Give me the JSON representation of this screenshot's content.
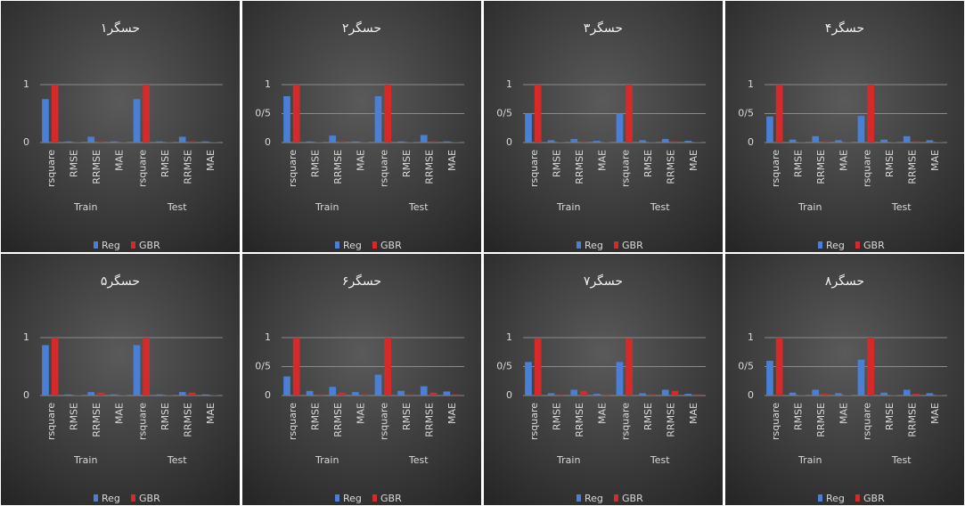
{
  "chart_data": [
    {
      "type": "bar",
      "title": "حسگر۱",
      "categories": [
        "rsquare",
        "RMSE",
        "RRMSE",
        "MAE",
        "rsquare",
        "RMSE",
        "RRMSE",
        "MAE"
      ],
      "groups": [
        "Train",
        "Test"
      ],
      "series": [
        {
          "name": "Reg",
          "color": "#4a7fd4",
          "values": [
            0.75,
            0.02,
            0.1,
            0.02,
            0.75,
            0.02,
            0.1,
            0.02
          ]
        },
        {
          "name": "GBR",
          "color": "#d62a2a",
          "values": [
            1.0,
            0.01,
            0.02,
            0.01,
            1.0,
            0.01,
            0.02,
            0.01
          ]
        }
      ],
      "ylim": [
        0,
        1
      ],
      "yticks": [
        0,
        1
      ],
      "grid": true
    },
    {
      "type": "bar",
      "title": "حسگر۲",
      "categories": [
        "rsquare",
        "RMSE",
        "RRMSE",
        "MAE",
        "rsquare",
        "RMSE",
        "RRMSE",
        "MAE"
      ],
      "groups": [
        "Train",
        "Test"
      ],
      "series": [
        {
          "name": "Reg",
          "color": "#4a7fd4",
          "values": [
            0.8,
            0.02,
            0.12,
            0.02,
            0.8,
            0.02,
            0.13,
            0.02
          ]
        },
        {
          "name": "GBR",
          "color": "#d62a2a",
          "values": [
            1.0,
            0.01,
            0.02,
            0.01,
            1.0,
            0.01,
            0.02,
            0.01
          ]
        }
      ],
      "ylim": [
        0,
        1
      ],
      "yticks": [
        0,
        {
          "value": 0.5,
          "label": "0/5"
        },
        1
      ],
      "grid": true
    },
    {
      "type": "bar",
      "title": "حسگر۳",
      "categories": [
        "rsquare",
        "RMSE",
        "RRMSE",
        "MAE",
        "rsquare",
        "RMSE",
        "RRMSE",
        "MAE"
      ],
      "groups": [
        "Train",
        "Test"
      ],
      "series": [
        {
          "name": "Reg",
          "color": "#4a7fd4",
          "values": [
            0.5,
            0.04,
            0.06,
            0.03,
            0.5,
            0.04,
            0.06,
            0.03
          ]
        },
        {
          "name": "GBR",
          "color": "#d62a2a",
          "values": [
            1.0,
            0.01,
            0.02,
            0.01,
            1.0,
            0.01,
            0.02,
            0.01
          ]
        }
      ],
      "ylim": [
        0,
        1
      ],
      "yticks": [
        0,
        {
          "value": 0.5,
          "label": "0/5"
        },
        1
      ],
      "grid": true
    },
    {
      "type": "bar",
      "title": "حسگر۴",
      "categories": [
        "rsquare",
        "RMSE",
        "RRMSE",
        "MAE",
        "rsquare",
        "RMSE",
        "RRMSE",
        "MAE"
      ],
      "groups": [
        "Train",
        "Test"
      ],
      "series": [
        {
          "name": "Reg",
          "color": "#4a7fd4",
          "values": [
            0.45,
            0.05,
            0.11,
            0.04,
            0.46,
            0.05,
            0.11,
            0.04
          ]
        },
        {
          "name": "GBR",
          "color": "#d62a2a",
          "values": [
            1.0,
            0.01,
            0.02,
            0.01,
            1.0,
            0.01,
            0.02,
            0.01
          ]
        }
      ],
      "ylim": [
        0,
        1
      ],
      "yticks": [
        0,
        {
          "value": 0.5,
          "label": "0/5"
        },
        1
      ],
      "grid": true
    },
    {
      "type": "bar",
      "title": "حسگر۵",
      "categories": [
        "rsquare",
        "RMSE",
        "RRMSE",
        "MAE",
        "rsquare",
        "RMSE",
        "RRMSE",
        "MAE"
      ],
      "groups": [
        "Train",
        "Test"
      ],
      "series": [
        {
          "name": "Reg",
          "color": "#4a7fd4",
          "values": [
            0.87,
            0.02,
            0.06,
            0.02,
            0.87,
            0.02,
            0.06,
            0.02
          ]
        },
        {
          "name": "GBR",
          "color": "#d62a2a",
          "values": [
            1.0,
            0.01,
            0.05,
            0.01,
            1.0,
            0.01,
            0.05,
            0.01
          ]
        }
      ],
      "ylim": [
        0,
        1
      ],
      "yticks": [
        0,
        1
      ],
      "grid": true
    },
    {
      "type": "bar",
      "title": "حسگر۶",
      "categories": [
        "rsquare",
        "RMSE",
        "RRMSE",
        "MAE",
        "rsquare",
        "RMSE",
        "RRMSE",
        "MAE"
      ],
      "groups": [
        "Train",
        "Test"
      ],
      "series": [
        {
          "name": "Reg",
          "color": "#4a7fd4",
          "values": [
            0.33,
            0.08,
            0.15,
            0.06,
            0.36,
            0.08,
            0.16,
            0.07
          ]
        },
        {
          "name": "GBR",
          "color": "#d62a2a",
          "values": [
            1.0,
            0.02,
            0.05,
            0.02,
            1.0,
            0.02,
            0.05,
            0.02
          ]
        }
      ],
      "ylim": [
        0,
        1
      ],
      "yticks": [
        0,
        {
          "value": 0.5,
          "label": "0/5"
        },
        1
      ],
      "grid": true
    },
    {
      "type": "bar",
      "title": "حسگر۷",
      "categories": [
        "rsquare",
        "RMSE",
        "RRMSE",
        "MAE",
        "rsquare",
        "RMSE",
        "RRMSE",
        "MAE"
      ],
      "groups": [
        "Train",
        "Test"
      ],
      "series": [
        {
          "name": "Reg",
          "color": "#4a7fd4",
          "values": [
            0.58,
            0.04,
            0.1,
            0.03,
            0.58,
            0.04,
            0.1,
            0.03
          ]
        },
        {
          "name": "GBR",
          "color": "#d62a2a",
          "values": [
            0.98,
            0.02,
            0.08,
            0.02,
            0.98,
            0.02,
            0.08,
            0.02
          ]
        }
      ],
      "ylim": [
        0,
        1
      ],
      "yticks": [
        0,
        {
          "value": 0.5,
          "label": "0/5"
        },
        1
      ],
      "grid": true
    },
    {
      "type": "bar",
      "title": "حسگر۸",
      "categories": [
        "rsquare",
        "RMSE",
        "RRMSE",
        "MAE",
        "rsquare",
        "RMSE",
        "RRMSE",
        "MAE"
      ],
      "groups": [
        "Train",
        "Test"
      ],
      "series": [
        {
          "name": "Reg",
          "color": "#4a7fd4",
          "values": [
            0.6,
            0.05,
            0.1,
            0.04,
            0.62,
            0.05,
            0.1,
            0.04
          ]
        },
        {
          "name": "GBR",
          "color": "#d62a2a",
          "values": [
            1.0,
            0.01,
            0.03,
            0.01,
            1.0,
            0.01,
            0.03,
            0.01
          ]
        }
      ],
      "ylim": [
        0,
        1
      ],
      "yticks": [
        0,
        {
          "value": 0.5,
          "label": "0/5"
        },
        1
      ],
      "grid": true
    }
  ]
}
